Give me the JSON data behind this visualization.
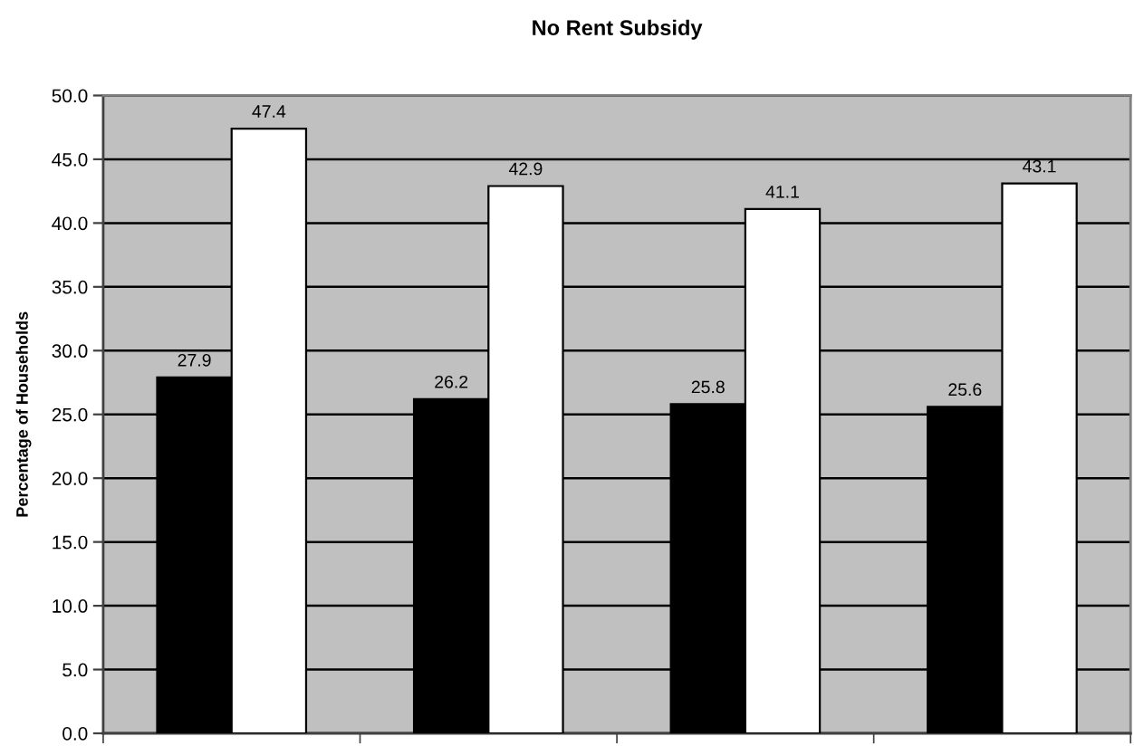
{
  "chart_data": {
    "type": "bar",
    "title": "No Rent Subsidy",
    "ylabel": "Percentage of Households",
    "categories": [
      null,
      null,
      null,
      null
    ],
    "series": [
      {
        "color": "#000000",
        "values": [
          27.9,
          26.2,
          25.8,
          25.6
        ]
      },
      {
        "color": "#ffffff",
        "values": [
          47.4,
          42.9,
          41.1,
          43.1
        ]
      }
    ],
    "ylim": [
      0,
      50
    ],
    "yticks": [
      {
        "value": 0,
        "label": "0.0"
      },
      {
        "value": 5,
        "label": "5.0"
      },
      {
        "value": 10,
        "label": "10.0"
      },
      {
        "value": 15,
        "label": "15.0"
      },
      {
        "value": 20,
        "label": "20.0"
      },
      {
        "value": 25,
        "label": "25.0"
      },
      {
        "value": 30,
        "label": "30.0"
      },
      {
        "value": 35,
        "label": "35.0"
      },
      {
        "value": 40,
        "label": "40.0"
      },
      {
        "value": 45,
        "label": "45.0"
      },
      {
        "value": 50,
        "label": "50.0"
      }
    ],
    "grid": "y",
    "data_labels": true
  }
}
